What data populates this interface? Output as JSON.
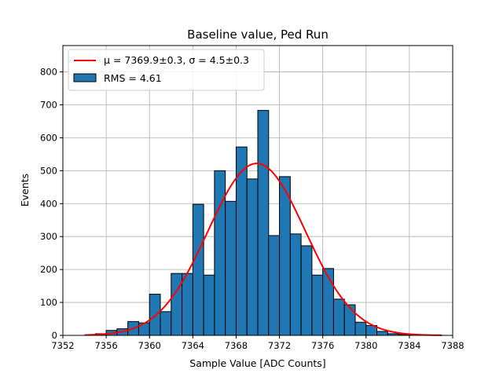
{
  "chart_data": {
    "type": "bar",
    "title": "Baseline value, Ped Run",
    "xlabel": "Sample Value [ADC Counts]",
    "ylabel": "Events",
    "xlim": [
      7352,
      7388
    ],
    "ylim": [
      0,
      880
    ],
    "xticks": [
      7352,
      7356,
      7360,
      7364,
      7368,
      7372,
      7376,
      7380,
      7384,
      7388
    ],
    "yticks": [
      0,
      100,
      200,
      300,
      400,
      500,
      600,
      700,
      800
    ],
    "grid": true,
    "legend_position": "upper-left",
    "colors": {
      "bars": "#1f77b4",
      "bar_edge": "#000000",
      "fit": "#ff0000",
      "grid": "#b0b0b0"
    },
    "series": [
      {
        "name": "RMS = 4.61",
        "kind": "histogram",
        "bin_width": 1,
        "bin_starts": [
          7355,
          7356,
          7357,
          7358,
          7359,
          7360,
          7361,
          7362,
          7363,
          7364,
          7365,
          7366,
          7367,
          7368,
          7369,
          7370,
          7371,
          7372,
          7373,
          7374,
          7375,
          7376,
          7377,
          7378,
          7379,
          7380,
          7381,
          7382,
          7383,
          7384
        ],
        "values": [
          5,
          15,
          20,
          42,
          38,
          125,
          72,
          188,
          188,
          398,
          183,
          500,
          407,
          572,
          475,
          683,
          303,
          482,
          308,
          272,
          183,
          203,
          110,
          93,
          40,
          30,
          12,
          5,
          3,
          2
        ]
      },
      {
        "name": "μ = 7369.9±0.3, σ = 4.5±0.3",
        "kind": "gaussian-fit",
        "mu": 7369.9,
        "sigma": 4.5,
        "amplitude": 522,
        "x_range": [
          7354,
          7387
        ]
      }
    ]
  }
}
